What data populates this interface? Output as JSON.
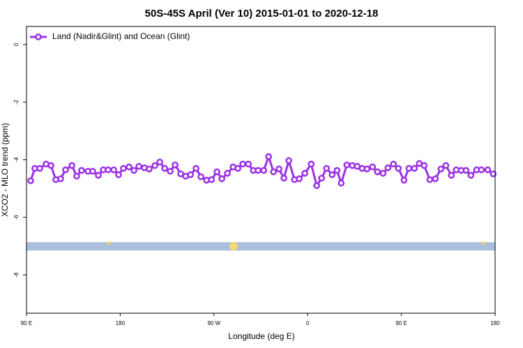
{
  "chart_data": {
    "type": "line",
    "title": "50S-45S April (Ver 10)   2015-01-01 to 2020-12-18",
    "x_label": "Longitude (deg E)",
    "y_label": "XCO2 - MLO trend (ppm)",
    "xlim": [
      90,
      540
    ],
    "xticks": [
      {
        "value": 90,
        "label": "90 E"
      },
      180,
      {
        "value": 270,
        "label": "90 W"
      },
      {
        "value": 360,
        "label": "0"
      },
      {
        "value": 450,
        "label": "90 E"
      },
      {
        "value": 540,
        "label": "180"
      }
    ],
    "ylim": [
      -9.33,
      0.63
    ],
    "yticks": [
      0,
      -2,
      -4,
      -6,
      -8
    ],
    "legend": "top-left",
    "series": [
      {
        "name": "Land (Nadir&Glint) and Ocean (Glint)",
        "color": "#9b30e6",
        "x": [
          94.0,
          98.0,
          102.7,
          108.8,
          113.5,
          118.1,
          122.8,
          127.5,
          133.6,
          138.2,
          142.9,
          149.0,
          153.6,
          159.0,
          163.7,
          168.4,
          173.8,
          178.4,
          183.1,
          188.5,
          193.2,
          197.9,
          203.2,
          207.9,
          213.3,
          218.0,
          222.7,
          228.0,
          232.7,
          238.1,
          242.8,
          247.5,
          252.8,
          257.5,
          262.9,
          267.6,
          272.9,
          277.6,
          283.0,
          288.4,
          293.0,
          297.7,
          303.1,
          307.8,
          312.4,
          317.8,
          322.5,
          327.2,
          332.5,
          337.2,
          341.9,
          347.3,
          351.9,
          357.3,
          363.4,
          368.7,
          373.4,
          378.1,
          383.5,
          388.2,
          392.2,
          397.6,
          402.9,
          407.6,
          412.3,
          417.0,
          422.3,
          427.0,
          432.4,
          437.1,
          442.4,
          447.1,
          452.5,
          457.2,
          462.5,
          467.2,
          471.9,
          477.3,
          482.6,
          488.0,
          492.7,
          498.0,
          502.7,
          507.4,
          512.1,
          516.8,
          522.2,
          526.8,
          532.9,
          538.2
        ],
        "values": [
          -4.73,
          -4.3,
          -4.3,
          -4.15,
          -4.2,
          -4.69,
          -4.66,
          -4.35,
          -4.2,
          -4.57,
          -4.37,
          -4.4,
          -4.4,
          -4.54,
          -4.35,
          -4.35,
          -4.35,
          -4.52,
          -4.3,
          -4.25,
          -4.37,
          -4.23,
          -4.28,
          -4.32,
          -4.2,
          -4.08,
          -4.3,
          -4.4,
          -4.18,
          -4.49,
          -4.57,
          -4.52,
          -4.3,
          -4.59,
          -4.71,
          -4.69,
          -4.42,
          -4.66,
          -4.47,
          -4.25,
          -4.3,
          -4.15,
          -4.15,
          -4.37,
          -4.37,
          -4.37,
          -3.89,
          -4.42,
          -4.32,
          -4.64,
          -4.03,
          -4.69,
          -4.66,
          -4.47,
          -4.15,
          -4.9,
          -4.64,
          -4.3,
          -4.52,
          -4.37,
          -4.81,
          -4.18,
          -4.2,
          -4.23,
          -4.3,
          -4.32,
          -4.25,
          -4.42,
          -4.47,
          -4.28,
          -4.15,
          -4.3,
          -4.71,
          -4.3,
          -4.3,
          -4.13,
          -4.2,
          -4.69,
          -4.66,
          -4.32,
          -4.2,
          -4.54,
          -4.35,
          -4.37,
          -4.37,
          -4.54,
          -4.35,
          -4.35,
          -4.35,
          -4.49
        ]
      }
    ]
  }
}
